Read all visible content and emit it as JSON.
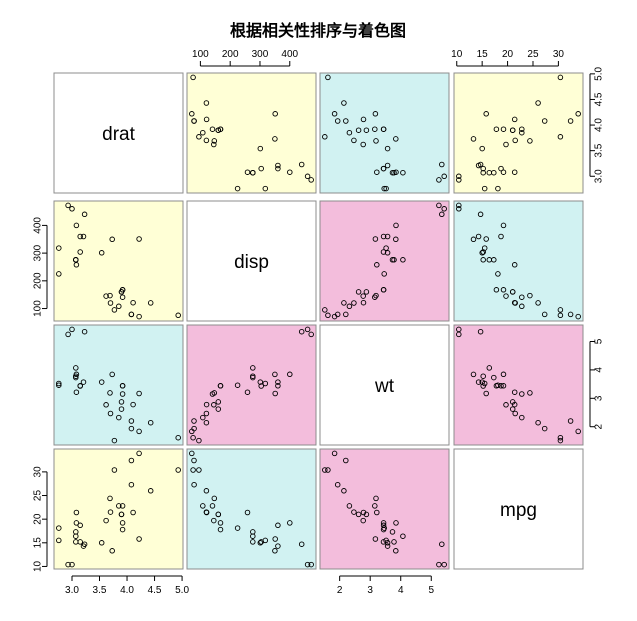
{
  "chart_data": {
    "type": "scatter",
    "title": "根据相关性排序与着色图",
    "variables": [
      "drat",
      "disp",
      "wt",
      "mpg"
    ],
    "colors": {
      "high_correlation": "#f3bddc",
      "medium_correlation": "#d1f2f2",
      "low_correlation": "#ffffd6",
      "diagonal": "#ffffff"
    },
    "cell_colors": [
      [
        "diagonal",
        "low_correlation",
        "medium_correlation",
        "low_correlation"
      ],
      [
        "low_correlation",
        "diagonal",
        "high_correlation",
        "medium_correlation"
      ],
      [
        "medium_correlation",
        "high_correlation",
        "diagonal",
        "high_correlation"
      ],
      [
        "low_correlation",
        "medium_correlation",
        "high_correlation",
        "diagonal"
      ]
    ],
    "ranges": {
      "drat": [
        2.76,
        4.93
      ],
      "disp": [
        71.1,
        472
      ],
      "wt": [
        1.513,
        5.424
      ],
      "mpg": [
        10.4,
        33.9
      ]
    },
    "ticks": {
      "drat": [
        "3.0",
        "3.5",
        "4.0",
        "4.5",
        "5.0"
      ],
      "disp": [
        "100",
        "200",
        "300",
        "400"
      ],
      "wt": [
        "2",
        "3",
        "4",
        "5"
      ],
      "mpg": [
        "10",
        "15",
        "20",
        "25",
        "30"
      ]
    },
    "tick_values": {
      "drat": [
        3.0,
        3.5,
        4.0,
        4.5,
        5.0
      ],
      "disp": [
        100,
        200,
        300,
        400
      ],
      "wt": [
        2,
        3,
        4,
        5
      ],
      "mpg": [
        10,
        15,
        20,
        25,
        30
      ]
    },
    "observations": {
      "mpg": [
        21,
        21,
        22.8,
        21.4,
        18.7,
        18.1,
        14.3,
        24.4,
        22.8,
        19.2,
        17.8,
        16.4,
        17.3,
        15.2,
        10.4,
        10.4,
        14.7,
        32.4,
        30.4,
        33.9,
        21.5,
        15.5,
        15.2,
        13.3,
        19.2,
        27.3,
        26,
        30.4,
        15.8,
        19.7,
        15,
        21.4
      ],
      "disp": [
        160,
        160,
        108,
        258,
        360,
        225,
        360,
        146.7,
        140.8,
        167.6,
        167.6,
        275.8,
        275.8,
        275.8,
        472,
        460,
        440,
        78.7,
        75.7,
        71.1,
        120.1,
        318,
        304,
        350,
        400,
        79,
        120.3,
        95.1,
        351,
        145,
        301,
        121
      ],
      "drat": [
        3.9,
        3.9,
        3.85,
        3.08,
        3.15,
        2.76,
        3.21,
        3.69,
        3.92,
        3.92,
        3.92,
        3.07,
        3.07,
        3.07,
        2.93,
        3,
        3.23,
        4.08,
        4.93,
        4.22,
        3.7,
        2.76,
        3.15,
        3.73,
        3.08,
        4.08,
        4.43,
        3.77,
        4.22,
        3.62,
        3.54,
        4.11
      ],
      "wt": [
        2.62,
        2.875,
        2.32,
        3.215,
        3.44,
        3.46,
        3.57,
        3.19,
        3.15,
        3.44,
        3.44,
        4.07,
        3.73,
        3.78,
        5.25,
        5.424,
        5.345,
        2.2,
        1.615,
        1.835,
        2.465,
        3.52,
        3.435,
        3.84,
        3.845,
        1.935,
        2.14,
        1.513,
        3.17,
        2.77,
        3.57,
        2.78
      ]
    }
  }
}
